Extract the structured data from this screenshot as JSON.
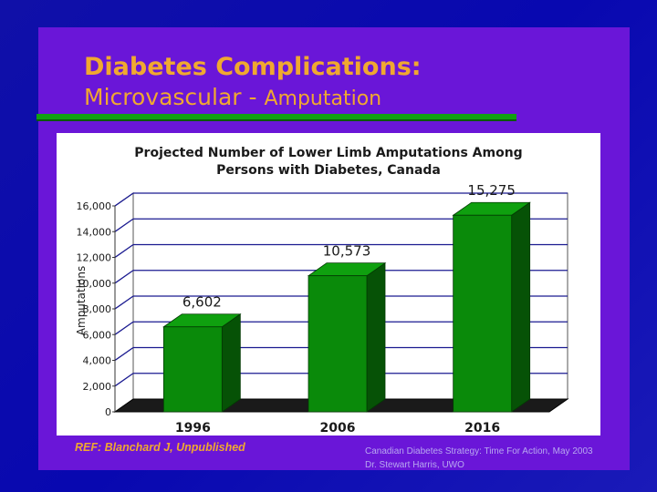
{
  "slide": {
    "title_bold": "Diabetes Complications:",
    "title_sub_a": "Microvascular - ",
    "title_sub_b": "Amputation",
    "reference": "REF: Blanchard J, Unpublished",
    "credit_line1": "Canadian Diabetes Strategy: Time For Action, May 2003",
    "credit_line2": "Dr. Stewart Harris, UWO"
  },
  "colors": {
    "background": "#1010a8",
    "panel": "#6a16d8",
    "title": "#f0a830",
    "bar_front": "#0a8a0a",
    "bar_top": "#0fa00f",
    "bar_side": "#065206",
    "gridline": "#1a1a90"
  },
  "chart_data": {
    "type": "bar",
    "title_line1": "Projected Number of Lower Limb Amputations Among",
    "title_line2": "Persons with Diabetes, Canada",
    "xlabel": "",
    "ylabel": "Amputations",
    "categories": [
      "1996",
      "2006",
      "2016"
    ],
    "values": [
      6602,
      10573,
      15275
    ],
    "data_labels": [
      "6,602",
      "10,573",
      "15,275"
    ],
    "ylim": [
      0,
      16000
    ],
    "yticks": [
      0,
      2000,
      4000,
      6000,
      8000,
      10000,
      12000,
      14000,
      16000
    ],
    "ytick_labels": [
      "0",
      "2,000",
      "4,000",
      "6,000",
      "8,000",
      "10,000",
      "12,000",
      "14,000",
      "16,000"
    ],
    "grid": true,
    "style": "3d"
  }
}
